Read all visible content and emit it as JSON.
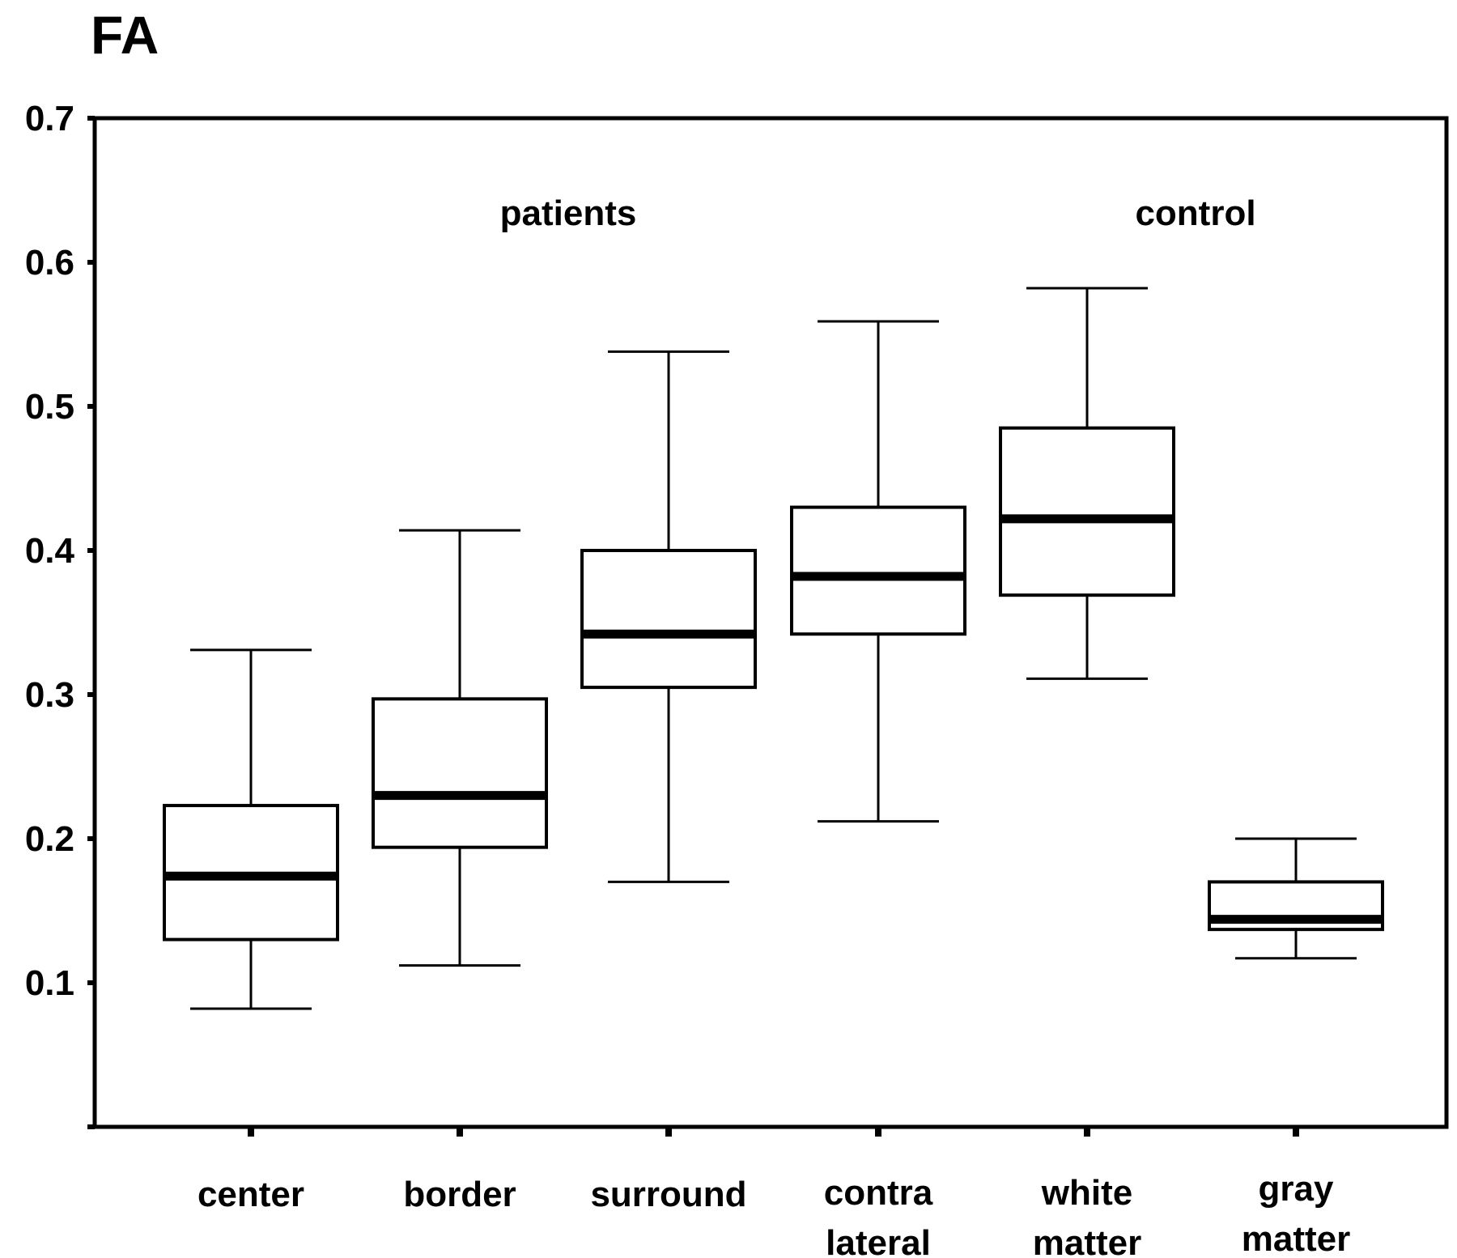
{
  "chart_data": {
    "type": "boxplot",
    "title": "FA",
    "ylim": [
      0,
      0.7
    ],
    "yticks": [
      {
        "value": 0.1,
        "label": "0.1"
      },
      {
        "value": 0.2,
        "label": "0.2"
      },
      {
        "value": 0.3,
        "label": "0.3"
      },
      {
        "value": 0.4,
        "label": "0.4"
      },
      {
        "value": 0.5,
        "label": "0.5"
      },
      {
        "value": 0.6,
        "label": "0.6"
      },
      {
        "value": 0.7,
        "label": "0.7"
      }
    ],
    "group_labels": [
      {
        "text": "patients",
        "center_index": 1.5
      },
      {
        "text": "control",
        "center_index": 4.5
      }
    ],
    "boxes": [
      {
        "label_lines": [
          "center"
        ],
        "whisker_low": 0.082,
        "q1": 0.13,
        "median": 0.174,
        "q3": 0.223,
        "whisker_high": 0.331
      },
      {
        "label_lines": [
          "border"
        ],
        "whisker_low": 0.112,
        "q1": 0.194,
        "median": 0.23,
        "q3": 0.297,
        "whisker_high": 0.414
      },
      {
        "label_lines": [
          "surround"
        ],
        "whisker_low": 0.17,
        "q1": 0.305,
        "median": 0.342,
        "q3": 0.4,
        "whisker_high": 0.538
      },
      {
        "label_lines": [
          "contra",
          "lateral"
        ],
        "whisker_low": 0.212,
        "q1": 0.342,
        "median": 0.382,
        "q3": 0.43,
        "whisker_high": 0.559
      },
      {
        "label_lines": [
          "white",
          "matter"
        ],
        "whisker_low": 0.311,
        "q1": 0.369,
        "median": 0.422,
        "q3": 0.485,
        "whisker_high": 0.582
      },
      {
        "label_lines": [
          "gray",
          "matter"
        ],
        "whisker_low": 0.117,
        "q1": 0.137,
        "median": 0.144,
        "q3": 0.17,
        "whisker_high": 0.2
      }
    ]
  }
}
